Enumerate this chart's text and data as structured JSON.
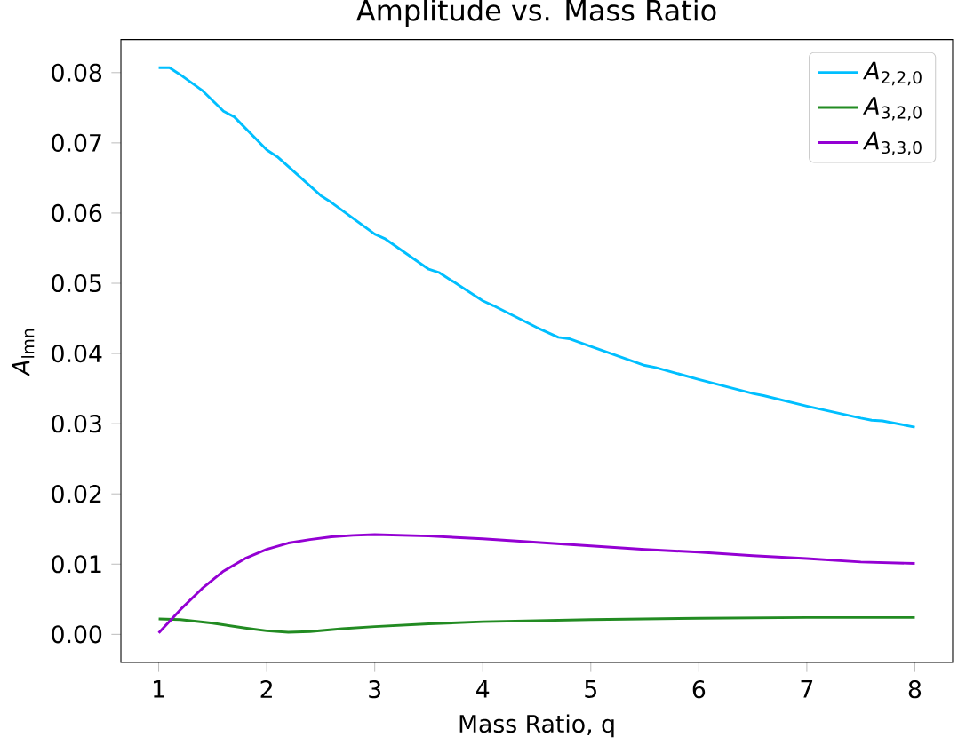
{
  "chart_data": {
    "type": "line",
    "title": "Amplitude vs. Mass Ratio",
    "xlabel": "Mass Ratio, q",
    "ylabel": "*A*$_{lmn}$",
    "xlim": [
      0.65,
      8.35
    ],
    "ylim": [
      -0.004,
      0.0847
    ],
    "xticks": [
      1,
      2,
      3,
      4,
      5,
      6,
      7,
      8
    ],
    "yticks": [
      {
        "value": 0,
        "label": "0.00"
      },
      {
        "value": 0.01,
        "label": "0.01"
      },
      {
        "value": 0.02,
        "label": "0.02"
      },
      {
        "value": 0.03,
        "label": "0.03"
      },
      {
        "value": 0.04,
        "label": "0.04"
      },
      {
        "value": 0.05,
        "label": "0.05"
      },
      {
        "value": 0.06,
        "label": "0.06"
      },
      {
        "value": 0.07,
        "label": "0.07"
      },
      {
        "value": 0.08,
        "label": "0.08"
      }
    ],
    "legend": "top right",
    "line_style": "solid",
    "series": [
      {
        "name": "*A*$_{2,2,0}$",
        "color": "#00bfff",
        "x": [
          1,
          1.1,
          1.2,
          1.4,
          1.6,
          1.7,
          2.0,
          2.1,
          2.5,
          2.6,
          3.0,
          3.1,
          3.5,
          3.6,
          4.0,
          4.1,
          4.5,
          4.7,
          4.8,
          5.0,
          5.5,
          5.6,
          6.0,
          6.5,
          6.6,
          7.0,
          7.5,
          7.6,
          7.7,
          8.0
        ],
        "values": [
          0.0807,
          0.0807,
          0.0797,
          0.0775,
          0.0745,
          0.0737,
          0.069,
          0.068,
          0.0625,
          0.0615,
          0.057,
          0.0563,
          0.052,
          0.0515,
          0.0475,
          0.0468,
          0.0437,
          0.0423,
          0.0421,
          0.041,
          0.0383,
          0.038,
          0.0363,
          0.0343,
          0.034,
          0.0325,
          0.0308,
          0.0305,
          0.0304,
          0.0295
        ]
      },
      {
        "name": "*A*$_{3,2,0}$",
        "color": "#228b22",
        "x": [
          1,
          1.2,
          1.5,
          1.8,
          2.0,
          2.2,
          2.4,
          2.7,
          3.0,
          3.5,
          4.0,
          5.0,
          6.0,
          7.0,
          8.0
        ],
        "values": [
          0.0022,
          0.0021,
          0.0016,
          0.0009,
          0.0005,
          0.0003,
          0.0004,
          0.0008,
          0.0011,
          0.0015,
          0.0018,
          0.0021,
          0.0023,
          0.0024,
          0.0024
        ]
      },
      {
        "name": "*A*$_{3,3,0}$",
        "color": "#9400d3",
        "x": [
          1,
          1.2,
          1.4,
          1.6,
          1.8,
          2.0,
          2.2,
          2.4,
          2.6,
          2.8,
          3.0,
          3.5,
          4.0,
          4.5,
          5.0,
          5.5,
          6.0,
          6.5,
          7.0,
          7.5,
          8.0
        ],
        "values": [
          0.0002,
          0.0035,
          0.0065,
          0.009,
          0.0108,
          0.0121,
          0.013,
          0.0135,
          0.0139,
          0.0141,
          0.0142,
          0.014,
          0.0136,
          0.0131,
          0.0126,
          0.0121,
          0.0117,
          0.0112,
          0.0108,
          0.0103,
          0.0101
        ]
      }
    ]
  }
}
